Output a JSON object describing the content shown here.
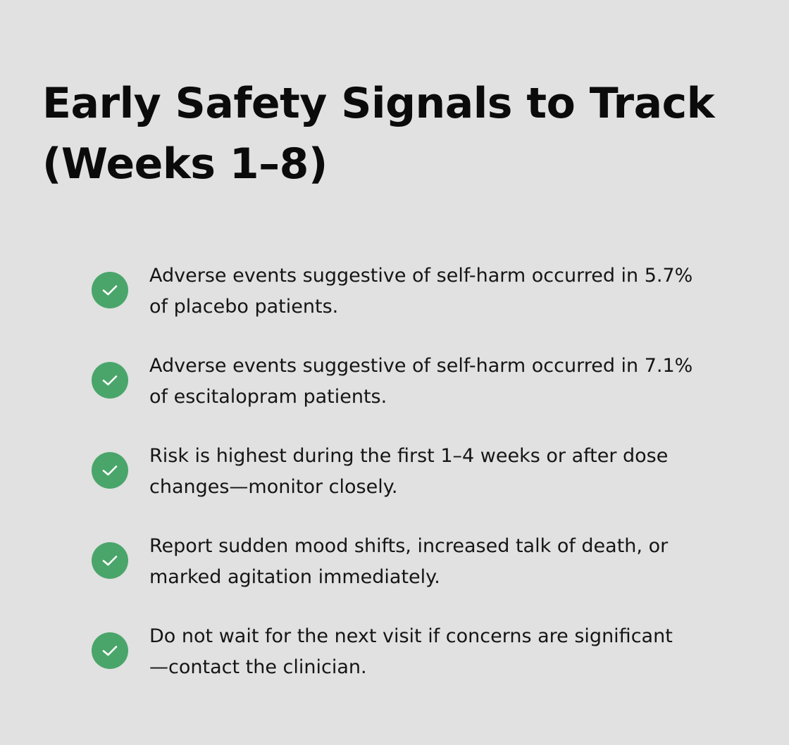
{
  "title": {
    "line1": "Early Safety Signals to Track",
    "line2": "(Weeks 1–8)"
  },
  "accent_color": "#4aa56a",
  "items": [
    {
      "icon": "check-circle-icon",
      "line1": "Adverse events suggestive of self-harm occurred in 5.7%",
      "line2": "of placebo patients."
    },
    {
      "icon": "check-circle-icon",
      "line1": "Adverse events suggestive of self-harm occurred in 7.1%",
      "line2": "of escitalopram patients."
    },
    {
      "icon": "check-circle-icon",
      "line1": "Risk is highest during the first 1–4 weeks or after dose",
      "line2": "changes—monitor closely."
    },
    {
      "icon": "check-circle-icon",
      "line1": "Report sudden mood shifts, increased talk of death, or",
      "line2": "marked agitation immediately."
    },
    {
      "icon": "check-circle-icon",
      "line1": "Do not wait for the next visit if concerns are significant",
      "line2": "—contact the clinician."
    }
  ]
}
